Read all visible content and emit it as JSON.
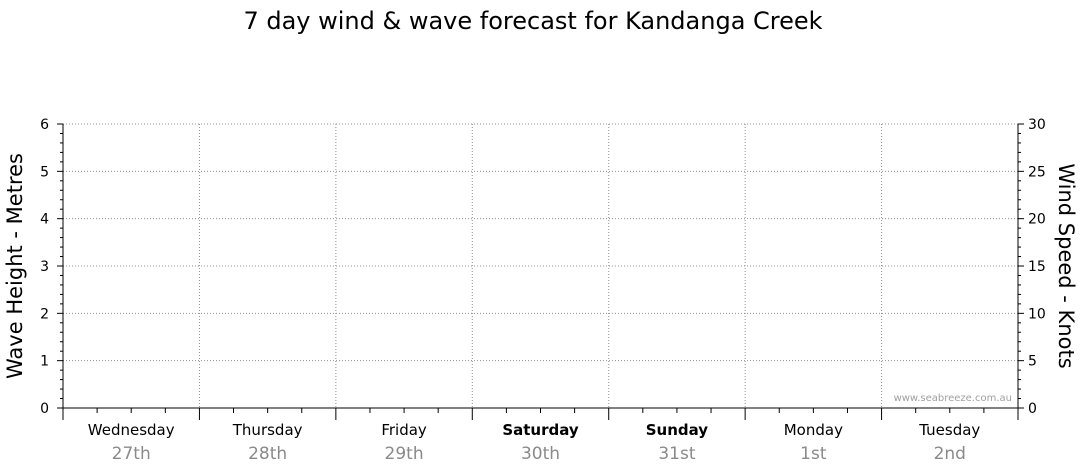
{
  "chart_data": {
    "type": "line",
    "title": "7 day wind & wave forecast for Kandanga Creek",
    "ylabel_left": "Wave Height - Metres",
    "ylabel_right": "Wind Speed - Knots",
    "ylim_left": [
      0,
      6
    ],
    "ylim_right": [
      0,
      30
    ],
    "yticks_left": [
      "0",
      "1",
      "2",
      "3",
      "4",
      "5",
      "6"
    ],
    "yticks_right": [
      "0",
      "5",
      "10",
      "15",
      "20",
      "25",
      "30"
    ],
    "grid": true,
    "days": [
      {
        "name": "Wednesday",
        "date": "27th",
        "bold": false
      },
      {
        "name": "Thursday",
        "date": "28th",
        "bold": false
      },
      {
        "name": "Friday",
        "date": "29th",
        "bold": false
      },
      {
        "name": "Saturday",
        "date": "30th",
        "bold": true
      },
      {
        "name": "Sunday",
        "date": "31st",
        "bold": true
      },
      {
        "name": "Monday",
        "date": "1st",
        "bold": false
      },
      {
        "name": "Tuesday",
        "date": "2nd",
        "bold": false
      }
    ],
    "series": []
  },
  "watermark": "www.seabreeze.com.au",
  "colors": {
    "axis": "#000000",
    "grid": "#909090",
    "date_text": "#8a8a8a",
    "watermark": "#a0a0a0"
  }
}
